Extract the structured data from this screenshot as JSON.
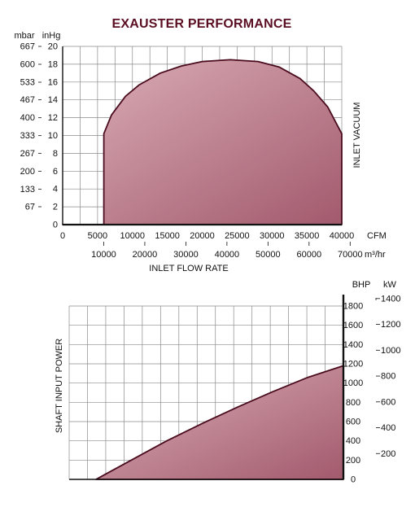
{
  "title": "EXAUSTER PERFORMANCE",
  "colors": {
    "fill_light": "#dcb0b8",
    "fill_dark": "#a25a6d",
    "outline": "#4a0c1e",
    "grid": "#8a8a8a",
    "title": "#5b0f23"
  },
  "chart_data": [
    {
      "type": "area",
      "title": "EXAUSTER PERFORMANCE",
      "xlabel": "INLET FLOW RATE",
      "ylabel": "INLET VACUUM",
      "x_unit": "CFM",
      "x2_unit": "m³/hr",
      "y_unit": "inHg",
      "y2_unit": "mbar",
      "xlim": [
        0,
        40000
      ],
      "ylim": [
        0,
        20
      ],
      "grid": true,
      "x_ticks": [
        "0",
        "5000",
        "10000",
        "15000",
        "20000",
        "25000",
        "30000",
        "35000",
        "40000"
      ],
      "x2_ticks": [
        "10000",
        "20000",
        "30000",
        "40000",
        "50000",
        "60000",
        "70000"
      ],
      "y_ticks": [
        "0",
        "2",
        "4",
        "6",
        "8",
        "10",
        "12",
        "14",
        "16",
        "18",
        "20"
      ],
      "y2_ticks": [
        "67",
        "133",
        "200",
        "267",
        "333",
        "400",
        "467",
        "533",
        "600",
        "667"
      ],
      "x": [
        0,
        5900,
        5900,
        7000,
        9000,
        11000,
        14000,
        17000,
        20000,
        24000,
        28000,
        31000,
        34000,
        36000,
        38000,
        39000,
        40000,
        40000
      ],
      "y": [
        0,
        0,
        10.2,
        12.3,
        14.4,
        15.7,
        17.0,
        17.8,
        18.3,
        18.5,
        18.3,
        17.7,
        16.4,
        15.0,
        13.2,
        11.7,
        10.2,
        0
      ]
    },
    {
      "type": "area",
      "ylabel": "SHAFT INPUT POWER",
      "y_unit": "BHP",
      "y2_unit": "kW",
      "ylim": [
        0,
        1800
      ],
      "grid": true,
      "y_ticks": [
        "0",
        "200",
        "400",
        "600",
        "800",
        "1000",
        "1200",
        "1400",
        "1600",
        "1800"
      ],
      "y2_ticks": [
        "200",
        "400",
        "600",
        "800",
        "1000",
        "1200",
        "1400"
      ],
      "x": [
        0,
        5000,
        10000,
        15000,
        20000,
        25000,
        30000,
        35000
      ],
      "y": [
        0,
        200,
        400,
        580,
        750,
        910,
        1060,
        1180
      ]
    }
  ]
}
